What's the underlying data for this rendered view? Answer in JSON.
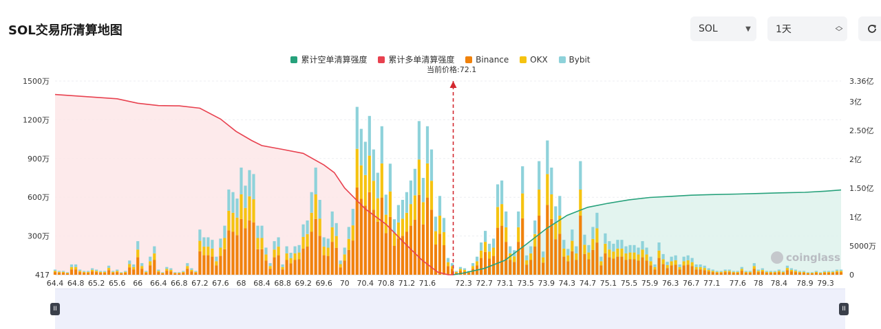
{
  "title": "SOL交易所清算地图",
  "controls": {
    "coin": "SOL",
    "range": "1天",
    "refresh_icon": "refresh-icon"
  },
  "current_price_label": "当前价格:72.1",
  "watermark": "coinglass",
  "colors": {
    "short_cum": "#26a17b",
    "long_cum": "#e8414f",
    "binance": "#f0820c",
    "okx": "#f5c311",
    "bybit": "#8ed2da"
  },
  "chart_data": {
    "type": "bar",
    "title": "SOL交易所清算地图",
    "legend": [
      {
        "name": "累计空单清算强度",
        "color": "#26a17b"
      },
      {
        "name": "累计多单清算强度",
        "color": "#e8414f"
      },
      {
        "name": "Binance",
        "color": "#f0820c"
      },
      {
        "name": "OKX",
        "color": "#f5c311"
      },
      {
        "name": "Bybit",
        "color": "#8ed2da"
      }
    ],
    "legend_position": "top-center",
    "current_price": 72.1,
    "x_range": [
      64.4,
      79.6
    ],
    "x_ticks": [
      "64.4",
      "64.8",
      "65.2",
      "65.6",
      "66",
      "66.4",
      "66.8",
      "67.2",
      "67.6",
      "68",
      "68.4",
      "68.8",
      "69.2",
      "69.6",
      "70",
      "70.4",
      "70.8",
      "71.2",
      "71.6",
      "72.3",
      "72.7",
      "73.1",
      "73.5",
      "73.9",
      "74.3",
      "74.7",
      "75.1",
      "75.5",
      "75.9",
      "76.3",
      "76.7",
      "77.1",
      "77.6",
      "78",
      "78.4",
      "78.9",
      "79.3"
    ],
    "y_left": {
      "ticks": [
        "417",
        "300万",
        "600万",
        "900万",
        "1200万",
        "1500万"
      ],
      "values": [
        0,
        3000000,
        6000000,
        9000000,
        12000000,
        15000000
      ],
      "range": [
        0,
        15000000
      ]
    },
    "y_right": {
      "ticks": [
        "0",
        "5000万",
        "1亿",
        "1.50亿",
        "2亿",
        "2.50亿",
        "3亿",
        "3.36亿"
      ],
      "values": [
        0,
        50000000,
        100000000,
        150000000,
        200000000,
        250000000,
        300000000,
        336000000
      ],
      "range": [
        0,
        336000000
      ]
    },
    "bars": {
      "x": [
        64.4,
        64.48,
        64.56,
        64.64,
        64.72,
        64.8,
        64.88,
        64.96,
        65.04,
        65.12,
        65.2,
        65.28,
        65.36,
        65.44,
        65.52,
        65.6,
        65.68,
        65.76,
        65.84,
        65.92,
        66.0,
        66.08,
        66.16,
        66.24,
        66.32,
        66.4,
        66.48,
        66.56,
        66.64,
        66.72,
        66.8,
        66.88,
        66.96,
        67.04,
        67.12,
        67.2,
        67.28,
        67.36,
        67.44,
        67.52,
        67.6,
        67.68,
        67.76,
        67.84,
        67.92,
        68.0,
        68.08,
        68.16,
        68.24,
        68.32,
        68.4,
        68.48,
        68.56,
        68.64,
        68.72,
        68.8,
        68.88,
        68.96,
        69.04,
        69.12,
        69.2,
        69.28,
        69.36,
        69.44,
        69.52,
        69.6,
        69.68,
        69.76,
        69.84,
        69.92,
        70.0,
        70.08,
        70.16,
        70.24,
        70.32,
        70.4,
        70.48,
        70.56,
        70.64,
        70.72,
        70.8,
        70.88,
        70.96,
        71.04,
        71.12,
        71.2,
        71.28,
        71.36,
        71.44,
        71.52,
        71.6,
        71.68,
        71.76,
        71.84,
        71.92,
        72.0,
        72.08,
        72.16,
        72.24,
        72.32,
        72.4,
        72.48,
        72.56,
        72.64,
        72.72,
        72.8,
        72.88,
        72.96,
        73.04,
        73.12,
        73.2,
        73.28,
        73.36,
        73.44,
        73.52,
        73.6,
        73.68,
        73.76,
        73.84,
        73.92,
        74.0,
        74.08,
        74.16,
        74.24,
        74.32,
        74.4,
        74.48,
        74.56,
        74.64,
        74.72,
        74.8,
        74.88,
        74.96,
        75.04,
        75.12,
        75.2,
        75.28,
        75.36,
        75.44,
        75.52,
        75.6,
        75.68,
        75.76,
        75.84,
        75.92,
        76.0,
        76.08,
        76.16,
        76.24,
        76.32,
        76.4,
        76.48,
        76.56,
        76.64,
        76.72,
        76.8,
        76.88,
        76.96,
        77.04,
        77.12,
        77.2,
        77.28,
        77.36,
        77.44,
        77.52,
        77.6,
        77.68,
        77.76,
        77.84,
        77.92,
        78.0,
        78.08,
        78.16,
        78.24,
        78.32,
        78.4,
        78.48,
        78.56,
        78.64,
        78.72,
        78.8,
        78.88,
        78.96,
        79.04,
        79.12,
        79.2,
        79.28,
        79.36,
        79.44,
        79.52,
        79.6
      ],
      "totals": [
        400000,
        300000,
        300000,
        200000,
        800000,
        800000,
        400000,
        300000,
        300000,
        500000,
        400000,
        300000,
        300000,
        700000,
        300000,
        400000,
        200000,
        300000,
        1100000,
        800000,
        2600000,
        900000,
        300000,
        1400000,
        2200000,
        400000,
        200000,
        600000,
        500000,
        200000,
        200000,
        300000,
        900000,
        500000,
        300000,
        3500000,
        2900000,
        2900000,
        2700000,
        1400000,
        2800000,
        3800000,
        6600000,
        6400000,
        5900000,
        8300000,
        6900000,
        8100000,
        7800000,
        3800000,
        3800000,
        2100000,
        900000,
        2600000,
        2900000,
        800000,
        2200000,
        1700000,
        2200000,
        2300000,
        3900000,
        4200000,
        6400000,
        8300000,
        5800000,
        2900000,
        2800000,
        4900000,
        4000000,
        1100000,
        2100000,
        3700000,
        5100000,
        13000000,
        11300000,
        10300000,
        12300000,
        9700000,
        7900000,
        11500000,
        6200000,
        8600000,
        4300000,
        5400000,
        5800000,
        6400000,
        7300000,
        8200000,
        11900000,
        7500000,
        11500000,
        9700000,
        4500000,
        6100000,
        4400000,
        1300000,
        900000,
        300000,
        600000,
        500000,
        300000,
        900000,
        1400000,
        2500000,
        3400000,
        2400000,
        2800000,
        7000000,
        7300000,
        4900000,
        2200000,
        1900000,
        4900000,
        8400000,
        1500000,
        2200000,
        4200000,
        8800000,
        1800000,
        10400000,
        8300000,
        5300000,
        6100000,
        2700000,
        2000000,
        3500000,
        2200000,
        8800000,
        3100000,
        2300000,
        3700000,
        4800000,
        1400000,
        3200000,
        2600000,
        2400000,
        2700000,
        2700000,
        2200000,
        2300000,
        2300000,
        2100000,
        2600000,
        2100000,
        1400000,
        800000,
        2500000,
        1600000,
        1000000,
        1400000,
        1500000,
        800000,
        1400000,
        1500000,
        1300000,
        800000,
        800000,
        700000,
        500000,
        400000,
        300000,
        300000,
        400000,
        400000,
        300000,
        300000,
        600000,
        300000,
        300000,
        900000,
        400000,
        500000,
        300000,
        300000,
        300000,
        400000,
        300000,
        700000,
        500000,
        400000,
        300000,
        300000,
        200000,
        200000,
        300000,
        200000,
        300000,
        300000,
        300000,
        400000,
        400000,
        700000,
        700000,
        400000,
        400000,
        300000,
        300000,
        300000
      ]
    },
    "long_cumulative_line": {
      "x": [
        64.4,
        65.0,
        65.6,
        66.0,
        66.4,
        66.8,
        67.2,
        67.6,
        67.9,
        68.2,
        68.4,
        68.8,
        69.2,
        69.6,
        69.8,
        70.0,
        70.4,
        70.8,
        71.2,
        71.5,
        71.8,
        72.0,
        72.1
      ],
      "y": [
        13960000,
        13790000,
        13630000,
        13280000,
        13100000,
        13080000,
        12900000,
        12060000,
        11100000,
        10400000,
        10000000,
        9710000,
        9400000,
        8500000,
        7910000,
        6720000,
        5090000,
        3910000,
        2280000,
        1120000,
        200000,
        0,
        0
      ]
    },
    "short_cumulative_line": {
      "x": [
        72.1,
        72.3,
        72.7,
        73.1,
        73.5,
        73.9,
        74.3,
        74.7,
        75.1,
        75.5,
        75.9,
        76.3,
        76.7,
        77.1,
        77.6,
        78.0,
        78.4,
        78.9,
        79.3,
        79.6
      ],
      "y": [
        0,
        3000000,
        11000000,
        25000000,
        52000000,
        80000000,
        103000000,
        117000000,
        124000000,
        130000000,
        134000000,
        136000000,
        138000000,
        139000000,
        140000000,
        141000000,
        142000000,
        143000000,
        145000000,
        147000000
      ]
    }
  }
}
